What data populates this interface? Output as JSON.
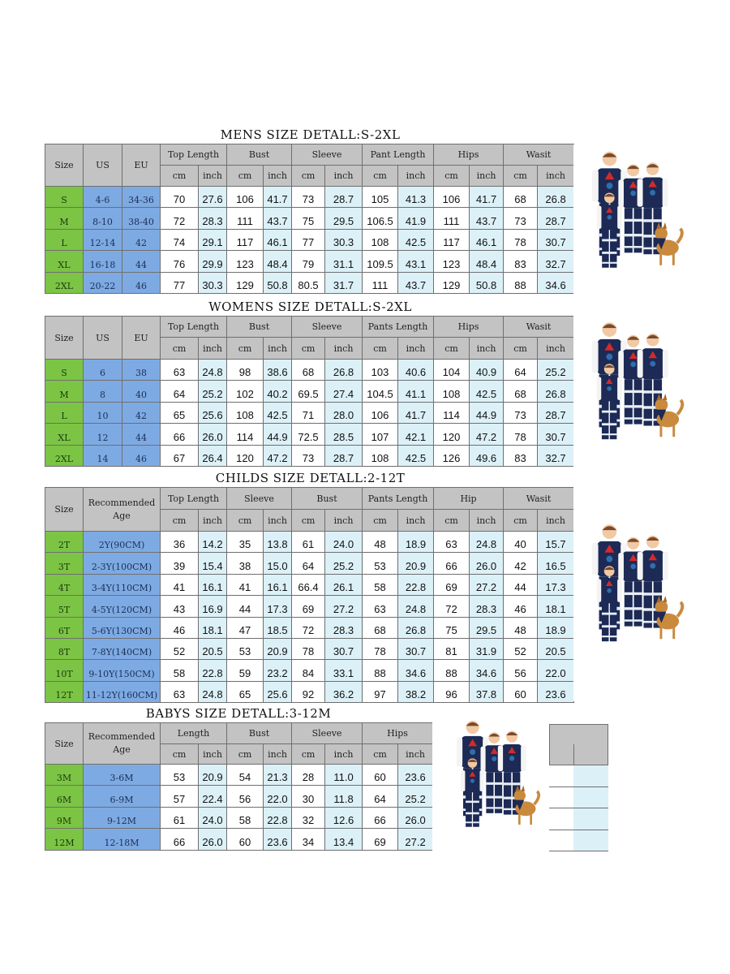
{
  "units": {
    "cm": "cm",
    "inch": "inch"
  },
  "colors": {
    "header_gray": "#c3c3c3",
    "size_green": "#7cc444",
    "us_eu_blue": "#7eaae3",
    "inch_light_blue": "#dcf0f7"
  },
  "tables": [
    {
      "title": "MENS SIZE DETALL:S-2XL",
      "fixed_headers": [
        "Size",
        "US",
        "EU"
      ],
      "groups": [
        "Top Length",
        "Bust",
        "Sleeve",
        "Pant Length",
        "Hips",
        "Wasit"
      ],
      "rows": [
        {
          "size": "S",
          "fixed": [
            "4-6",
            "34-36"
          ],
          "values": [
            "70",
            "27.6",
            "106",
            "41.7",
            "73",
            "28.7",
            "105",
            "41.3",
            "106",
            "41.7",
            "68",
            "26.8"
          ]
        },
        {
          "size": "M",
          "fixed": [
            "8-10",
            "38-40"
          ],
          "values": [
            "72",
            "28.3",
            "111",
            "43.7",
            "75",
            "29.5",
            "106.5",
            "41.9",
            "111",
            "43.7",
            "73",
            "28.7"
          ]
        },
        {
          "size": "L",
          "fixed": [
            "12-14",
            "42"
          ],
          "values": [
            "74",
            "29.1",
            "117",
            "46.1",
            "77",
            "30.3",
            "108",
            "42.5",
            "117",
            "46.1",
            "78",
            "30.7"
          ]
        },
        {
          "size": "XL",
          "fixed": [
            "16-18",
            "44"
          ],
          "values": [
            "76",
            "29.9",
            "123",
            "48.4",
            "79",
            "31.1",
            "109.5",
            "43.1",
            "123",
            "48.4",
            "83",
            "32.7"
          ]
        },
        {
          "size": "2XL",
          "fixed": [
            "20-22",
            "46"
          ],
          "values": [
            "77",
            "30.3",
            "129",
            "50.8",
            "80.5",
            "31.7",
            "111",
            "43.7",
            "129",
            "50.8",
            "88",
            "34.6"
          ]
        }
      ]
    },
    {
      "title": "WOMENS SIZE DETALL:S-2XL",
      "fixed_headers": [
        "Size",
        "US",
        "EU"
      ],
      "groups": [
        "Top Length",
        "Bust",
        "Sleeve",
        "Pants Length",
        "Hips",
        "Wasit"
      ],
      "rows": [
        {
          "size": "S",
          "fixed": [
            "6",
            "38"
          ],
          "values": [
            "63",
            "24.8",
            "98",
            "38.6",
            "68",
            "26.8",
            "103",
            "40.6",
            "104",
            "40.9",
            "64",
            "25.2"
          ]
        },
        {
          "size": "M",
          "fixed": [
            "8",
            "40"
          ],
          "values": [
            "64",
            "25.2",
            "102",
            "40.2",
            "69.5",
            "27.4",
            "104.5",
            "41.1",
            "108",
            "42.5",
            "68",
            "26.8"
          ]
        },
        {
          "size": "L",
          "fixed": [
            "10",
            "42"
          ],
          "values": [
            "65",
            "25.6",
            "108",
            "42.5",
            "71",
            "28.0",
            "106",
            "41.7",
            "114",
            "44.9",
            "73",
            "28.7"
          ]
        },
        {
          "size": "XL",
          "fixed": [
            "12",
            "44"
          ],
          "values": [
            "66",
            "26.0",
            "114",
            "44.9",
            "72.5",
            "28.5",
            "107",
            "42.1",
            "120",
            "47.2",
            "78",
            "30.7"
          ]
        },
        {
          "size": "2XL",
          "fixed": [
            "14",
            "46"
          ],
          "values": [
            "67",
            "26.4",
            "120",
            "47.2",
            "73",
            "28.7",
            "108",
            "42.5",
            "126",
            "49.6",
            "83",
            "32.7"
          ]
        }
      ]
    },
    {
      "title": "CHILDS SIZE DETALL:2-12T",
      "fixed_headers": [
        "Size",
        "Recommended Age"
      ],
      "groups": [
        "Top Length",
        "Sleeve",
        "Bust",
        "Pants Length",
        "Hip",
        "Wasit"
      ],
      "rows": [
        {
          "size": "2T",
          "fixed": [
            "2Y(90CM)"
          ],
          "values": [
            "36",
            "14.2",
            "35",
            "13.8",
            "61",
            "24.0",
            "48",
            "18.9",
            "63",
            "24.8",
            "40",
            "15.7"
          ]
        },
        {
          "size": "3T",
          "fixed": [
            "2-3Y(100CM)"
          ],
          "values": [
            "39",
            "15.4",
            "38",
            "15.0",
            "64",
            "25.2",
            "53",
            "20.9",
            "66",
            "26.0",
            "42",
            "16.5"
          ]
        },
        {
          "size": "4T",
          "fixed": [
            "3-4Y(110CM)"
          ],
          "values": [
            "41",
            "16.1",
            "41",
            "16.1",
            "66.4",
            "26.1",
            "58",
            "22.8",
            "69",
            "27.2",
            "44",
            "17.3"
          ]
        },
        {
          "size": "5T",
          "fixed": [
            "4-5Y(120CM)"
          ],
          "values": [
            "43",
            "16.9",
            "44",
            "17.3",
            "69",
            "27.2",
            "63",
            "24.8",
            "72",
            "28.3",
            "46",
            "18.1"
          ]
        },
        {
          "size": "6T",
          "fixed": [
            "5-6Y(130CM)"
          ],
          "values": [
            "46",
            "18.1",
            "47",
            "18.5",
            "72",
            "28.3",
            "68",
            "26.8",
            "75",
            "29.5",
            "48",
            "18.9"
          ]
        },
        {
          "size": "8T",
          "fixed": [
            "7-8Y(140CM)"
          ],
          "values": [
            "52",
            "20.5",
            "53",
            "20.9",
            "78",
            "30.7",
            "78",
            "30.7",
            "81",
            "31.9",
            "52",
            "20.5"
          ]
        },
        {
          "size": "10T",
          "fixed": [
            "9-10Y(150CM)"
          ],
          "values": [
            "58",
            "22.8",
            "59",
            "23.2",
            "84",
            "33.1",
            "88",
            "34.6",
            "88",
            "34.6",
            "56",
            "22.0"
          ]
        },
        {
          "size": "12T",
          "fixed": [
            "11-12Y(160CM)"
          ],
          "values": [
            "63",
            "24.8",
            "65",
            "25.6",
            "92",
            "36.2",
            "97",
            "38.2",
            "96",
            "37.8",
            "60",
            "23.6"
          ]
        }
      ]
    },
    {
      "title": "BABYS SIZE DETALL:3-12M",
      "fixed_headers": [
        "Size",
        "Recommended Age"
      ],
      "groups": [
        "Length",
        "Bust",
        "Sleeve",
        "Hips"
      ],
      "rows": [
        {
          "size": "3M",
          "fixed": [
            "3-6M"
          ],
          "values": [
            "53",
            "20.9",
            "54",
            "21.3",
            "28",
            "11.0",
            "60",
            "23.6"
          ]
        },
        {
          "size": "6M",
          "fixed": [
            "6-9M"
          ],
          "values": [
            "57",
            "22.4",
            "56",
            "22.0",
            "30",
            "11.8",
            "64",
            "25.2"
          ]
        },
        {
          "size": "9M",
          "fixed": [
            "9-12M"
          ],
          "values": [
            "61",
            "24.0",
            "58",
            "22.8",
            "32",
            "12.6",
            "66",
            "26.0"
          ]
        },
        {
          "size": "12M",
          "fixed": [
            "12-18M"
          ],
          "values": [
            "66",
            "26.0",
            "60",
            "23.6",
            "34",
            "13.4",
            "69",
            "27.2"
          ]
        }
      ]
    }
  ]
}
